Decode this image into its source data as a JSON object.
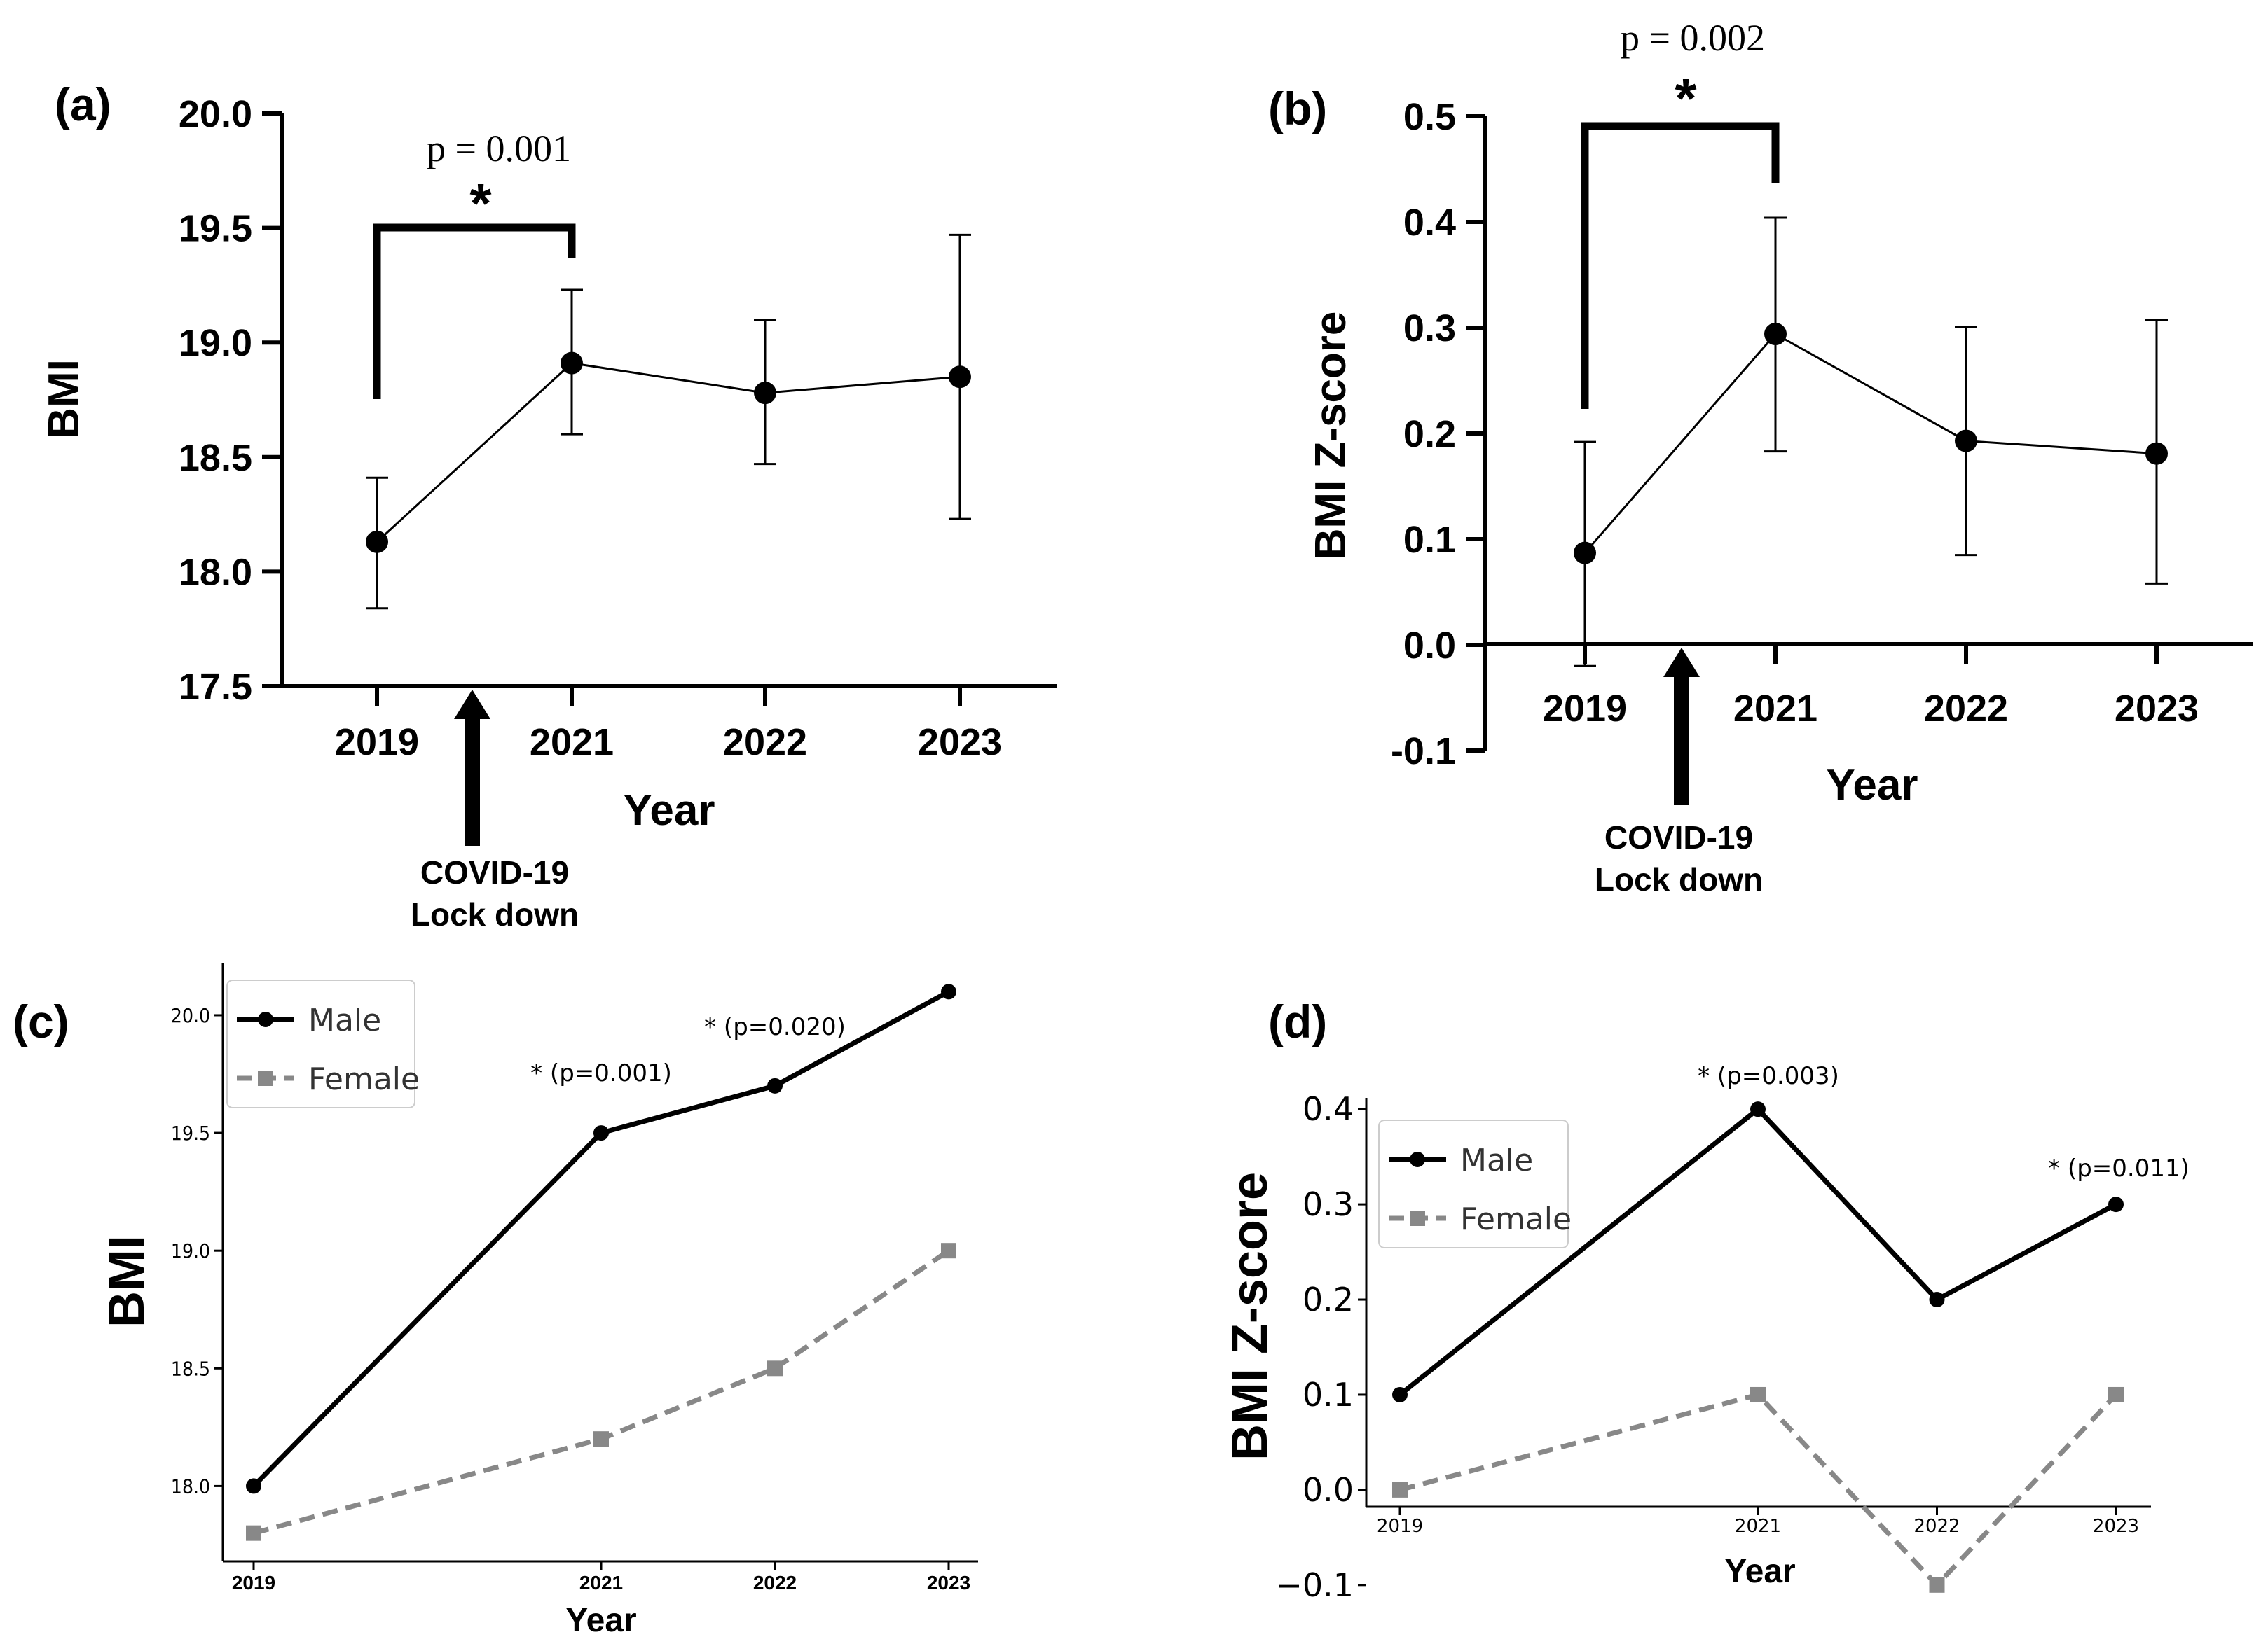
{
  "chart_data": [
    {
      "panel": "(a)",
      "type": "line",
      "categories": [
        "2019",
        "2021",
        "2022",
        "2023"
      ],
      "values": [
        18.13,
        18.91,
        18.78,
        18.85
      ],
      "err_low": [
        17.84,
        18.6,
        18.47,
        18.23
      ],
      "err_high": [
        18.41,
        19.23,
        19.1,
        19.47
      ],
      "ylim": [
        17.5,
        20.0
      ],
      "yticks": [
        "17.5",
        "18.0",
        "18.5",
        "19.0",
        "19.5",
        "20.0"
      ],
      "xlabel": "Year",
      "ylabel": "BMI",
      "annotation": {
        "from": "2019",
        "to": "2021",
        "p_text": "p = 0.001",
        "star": "*"
      },
      "event_label": [
        "COVID-19",
        "Lock down"
      ]
    },
    {
      "panel": "(b)",
      "type": "line",
      "categories": [
        "2019",
        "2021",
        "2022",
        "2023"
      ],
      "values": [
        0.087,
        0.294,
        0.193,
        0.181
      ],
      "err_low": [
        -0.02,
        0.183,
        0.085,
        0.058
      ],
      "err_high": [
        0.192,
        0.404,
        0.301,
        0.307
      ],
      "ylim": [
        -0.1,
        0.5
      ],
      "yticks": [
        "-0.1",
        "0.0",
        "0.1",
        "0.2",
        "0.3",
        "0.4",
        "0.5"
      ],
      "xlabel": "Year",
      "ylabel": "BMI Z-score",
      "annotation": {
        "from": "2019",
        "to": "2021",
        "p_text": "p = 0.002",
        "star": "*"
      },
      "event_label": [
        "COVID-19",
        "Lock down"
      ]
    },
    {
      "panel": "(c)",
      "type": "line",
      "x": [
        2019,
        2021,
        2022,
        2023
      ],
      "xtick_labels": [
        "2019",
        "2021",
        "2022",
        "2023"
      ],
      "series": [
        {
          "name": "Male",
          "values": [
            18.0,
            19.5,
            19.7,
            20.1
          ]
        },
        {
          "name": "Female",
          "values": [
            17.8,
            18.2,
            18.5,
            19.0
          ]
        }
      ],
      "ylim": [
        17.68,
        20.22
      ],
      "yticks": [
        "18.0",
        "18.5",
        "19.0",
        "19.5",
        "20.0"
      ],
      "xlabel": "Year",
      "ylabel": "BMI",
      "annotations": [
        {
          "x": 2021,
          "text": "* (p=0.001)"
        },
        {
          "x": 2022,
          "text": "* (p=0.020)"
        }
      ]
    },
    {
      "panel": "(d)",
      "type": "line",
      "x": [
        2019,
        2021,
        2022,
        2023
      ],
      "xtick_labels": [
        "2019",
        "2021",
        "2022",
        "2023"
      ],
      "series": [
        {
          "name": "Male",
          "values": [
            0.1,
            0.4,
            0.2,
            0.3
          ]
        },
        {
          "name": "Female",
          "values": [
            0.0,
            0.1,
            -0.1,
            0.1
          ]
        }
      ],
      "ylim": [
        -0.12,
        0.42
      ],
      "yticks": [
        "0.0",
        "0.1",
        "0.2",
        "0.3",
        "0.4"
      ],
      "ytick_neg": "−0.1",
      "xlabel": "Year",
      "ylabel": "BMI Z-score",
      "annotations": [
        {
          "x": 2021,
          "text": "* (p=0.003)"
        },
        {
          "x": 2023,
          "text": "* (p=0.011)"
        }
      ]
    }
  ],
  "colors": {
    "male": "#000000",
    "female": "#888888"
  }
}
